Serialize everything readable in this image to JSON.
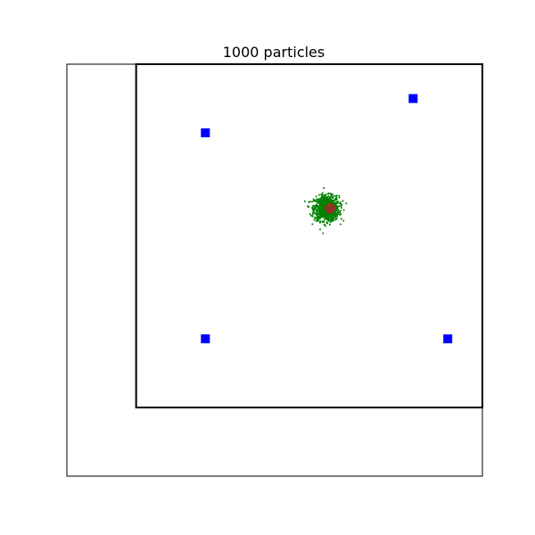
{
  "chart_data": {
    "type": "scatter",
    "title": "1000 particles",
    "xlabel": "",
    "ylabel": "",
    "grid": false,
    "axes_visible": false,
    "xlim": [
      -0.2,
      1.0
    ],
    "ylim": [
      -0.2,
      1.0
    ],
    "boundary": {
      "x": [
        0,
        1
      ],
      "y": [
        0,
        1
      ],
      "color": "#000000"
    },
    "landmarks": {
      "color": "#0000ff",
      "marker": "square",
      "points": [
        [
          0.2,
          0.8
        ],
        [
          0.8,
          0.9
        ],
        [
          0.2,
          0.2
        ],
        [
          0.9,
          0.2
        ]
      ]
    },
    "particles": {
      "count": 1000,
      "color": "#008000",
      "center": [
        0.55,
        0.58
      ],
      "spread": 0.018
    },
    "robot": {
      "color": "#a52a2a",
      "point": [
        0.56,
        0.58
      ]
    }
  }
}
